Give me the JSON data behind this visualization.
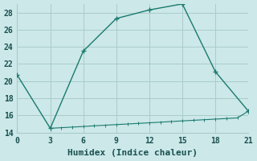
{
  "xlabel": "Humidex (Indice chaleur)",
  "background_color": "#cce8e8",
  "line_color": "#1a7a6e",
  "grid_color": "#aacccc",
  "xlim": [
    0,
    21
  ],
  "ylim": [
    14,
    29
  ],
  "xticks": [
    0,
    3,
    6,
    9,
    12,
    15,
    18,
    21
  ],
  "yticks": [
    14,
    16,
    18,
    20,
    22,
    24,
    26,
    28
  ],
  "series1_x": [
    0,
    3,
    6,
    9,
    12,
    15,
    18,
    21
  ],
  "series1_y": [
    20.7,
    14.5,
    23.5,
    27.3,
    28.3,
    29.0,
    21.1,
    16.5
  ],
  "series2_x": [
    3,
    4,
    5,
    6,
    7,
    8,
    9,
    10,
    11,
    12,
    13,
    14,
    15,
    16,
    17,
    18,
    19,
    20,
    21
  ],
  "series2_y": [
    14.5,
    14.57,
    14.64,
    14.71,
    14.79,
    14.86,
    14.93,
    15.0,
    15.07,
    15.14,
    15.21,
    15.29,
    15.36,
    15.43,
    15.5,
    15.57,
    15.64,
    15.71,
    16.5
  ],
  "marker": "+",
  "marker_size": 5,
  "marker_linewidth": 1.0,
  "line_width": 1.0,
  "font_family": "monospace",
  "tick_fontsize": 7,
  "xlabel_fontsize": 8
}
